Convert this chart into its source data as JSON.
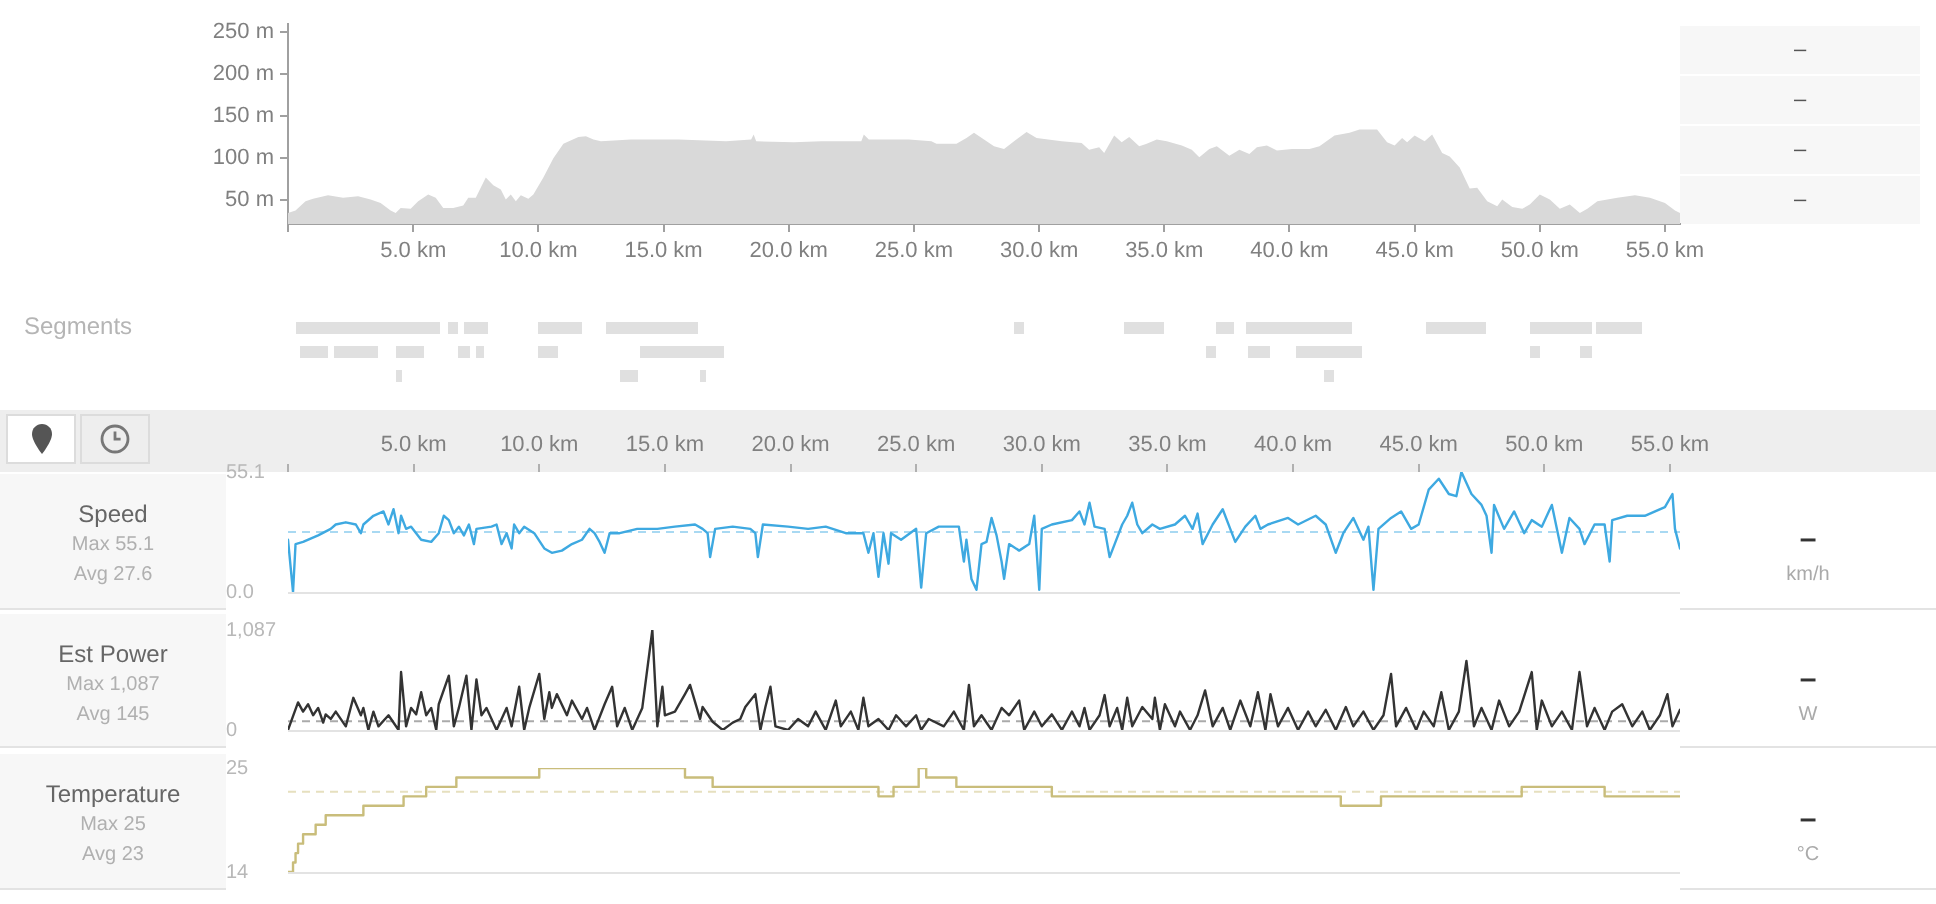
{
  "chart_data": [
    {
      "type": "area",
      "color": "#d9d9d9",
      "xlim": [
        0,
        55.6
      ],
      "ylim": [
        22,
        259
      ],
      "xticks": [
        {
          "value": 0,
          "label": null
        },
        {
          "value": 5,
          "label": "5.0 km"
        },
        {
          "value": 10,
          "label": "10.0 km"
        },
        {
          "value": 15,
          "label": "15.0 km"
        },
        {
          "value": 20,
          "label": "20.0 km"
        },
        {
          "value": 25,
          "label": "25.0 km"
        },
        {
          "value": 30,
          "label": "30.0 km"
        },
        {
          "value": 35,
          "label": "35.0 km"
        },
        {
          "value": 40,
          "label": "40.0 km"
        },
        {
          "value": 45,
          "label": "45.0 km"
        },
        {
          "value": 50,
          "label": "50.0 km"
        },
        {
          "value": 55,
          "label": "55.0 km"
        }
      ],
      "yticks": [
        {
          "value": 50,
          "label": "50 m"
        },
        {
          "value": 100,
          "label": "100 m"
        },
        {
          "value": 150,
          "label": "150 m"
        },
        {
          "value": 200,
          "label": "200 m"
        },
        {
          "value": 250,
          "label": "250 m"
        }
      ],
      "x": [
        0,
        0.3,
        0.7,
        1.0,
        1.6,
        2.2,
        2.8,
        3.3,
        3.7,
        4.1,
        4.3,
        4.5,
        4.9,
        5.2,
        5.6,
        5.9,
        6.2,
        6.6,
        7.0,
        7.2,
        7.5,
        7.9,
        8.2,
        8.5,
        8.7,
        8.9,
        9.1,
        9.3,
        9.6,
        9.8,
        10.2,
        10.6,
        11.0,
        11.6,
        11.9,
        12.2,
        12.5,
        13.7,
        15.6,
        17.5,
        18.5,
        18.6,
        18.7,
        20.2,
        21.3,
        22.9,
        23.0,
        23.2,
        24.8,
        25.7,
        25.9,
        26.7,
        27.1,
        27.4,
        27.8,
        28.2,
        28.6,
        29.0,
        29.5,
        29.9,
        30.9,
        31.7,
        32.0,
        32.4,
        32.6,
        33.0,
        33.3,
        33.6,
        34.0,
        34.3,
        34.7,
        35.1,
        35.7,
        36.1,
        36.4,
        36.8,
        37.1,
        37.6,
        38.0,
        38.4,
        38.7,
        39.1,
        39.5,
        40.1,
        40.8,
        41.2,
        41.8,
        42.4,
        42.8,
        43.5,
        43.9,
        44.2,
        44.5,
        44.7,
        45.0,
        45.4,
        45.7,
        46.1,
        46.4,
        46.8,
        47.2,
        47.5,
        47.9,
        48.3,
        48.5,
        48.9,
        49.3,
        49.6,
        50.0,
        50.4,
        50.8,
        51.2,
        51.6,
        51.9,
        52.3,
        53.1,
        53.8,
        54.4,
        55.0,
        55.4,
        55.6
      ],
      "values": [
        35,
        38,
        49,
        52,
        56,
        53,
        55,
        51,
        47,
        38,
        35,
        41,
        40,
        49,
        57,
        53,
        41,
        41,
        44,
        53,
        53,
        77,
        68,
        63,
        51,
        57,
        49,
        56,
        52,
        57,
        77,
        100,
        117,
        125,
        126,
        122,
        120,
        122,
        122,
        120,
        122,
        128,
        120,
        119,
        120,
        120,
        128,
        122,
        122,
        120,
        117,
        117,
        124,
        130,
        122,
        114,
        111,
        120,
        131,
        124,
        120,
        118,
        110,
        113,
        106,
        127,
        119,
        125,
        114,
        117,
        122,
        120,
        115,
        110,
        101,
        111,
        114,
        103,
        110,
        105,
        113,
        115,
        109,
        111,
        111,
        114,
        127,
        130,
        134,
        134,
        119,
        115,
        124,
        119,
        127,
        120,
        128,
        106,
        102,
        89,
        64,
        65,
        49,
        43,
        51,
        42,
        40,
        45,
        57,
        51,
        40,
        45,
        35,
        40,
        49,
        53,
        56,
        53,
        47,
        38,
        35
      ],
      "annotations": [
        "–",
        "–",
        "–",
        "–"
      ]
    },
    {
      "type": "other",
      "title": "Segments"
    },
    {
      "type": "line",
      "title": "Speed",
      "color": "#3ea9e1",
      "xlim": [
        0,
        55.4
      ],
      "ylim": [
        0,
        55.1
      ],
      "xticks": [
        {
          "value": 0,
          "label": null
        },
        {
          "value": 5,
          "label": "5.0 km"
        },
        {
          "value": 10,
          "label": "10.0 km"
        },
        {
          "value": 15,
          "label": "15.0 km"
        },
        {
          "value": 20,
          "label": "20.0 km"
        },
        {
          "value": 25,
          "label": "25.0 km"
        },
        {
          "value": 30,
          "label": "30.0 km"
        },
        {
          "value": 35,
          "label": "35.0 km"
        },
        {
          "value": 40,
          "label": "40.0 km"
        },
        {
          "value": 45,
          "label": "45.0 km"
        },
        {
          "value": 50,
          "label": "50.0 km"
        },
        {
          "value": 55,
          "label": "55.0 km"
        }
      ],
      "yticks": [
        {
          "value": 0,
          "label": "0.0"
        },
        55.1
      ],
      "ref_lines": [
        {
          "axis": "y",
          "value": 27.6,
          "color": "#a9d9f2",
          "line_style": "dashed"
        }
      ],
      "x": [
        0,
        0.2,
        0.3,
        0.6,
        1.2,
        1.7,
        1.9,
        2.3,
        2.7,
        2.9,
        3.0,
        3.4,
        3.8,
        4.0,
        4.2,
        4.4,
        4.5,
        4.7,
        4.9,
        5.3,
        5.7,
        6.0,
        6.2,
        6.4,
        6.6,
        6.8,
        7.0,
        7.2,
        7.4,
        7.5,
        8.1,
        8.3,
        8.5,
        8.7,
        8.9,
        9.0,
        9.2,
        9.4,
        9.8,
        10.2,
        10.5,
        10.9,
        11.3,
        11.7,
        12.0,
        12.2,
        12.4,
        12.6,
        12.8,
        13.2,
        13.9,
        14.7,
        15.4,
        16.2,
        16.5,
        16.7,
        16.8,
        17.0,
        17.7,
        18.4,
        18.6,
        18.7,
        18.9,
        19.9,
        20.7,
        21.4,
        22.2,
        22.9,
        23.1,
        23.3,
        23.5,
        23.7,
        23.9,
        24.0,
        24.4,
        25.0,
        25.2,
        25.4,
        25.9,
        26.7,
        26.9,
        27.0,
        27.2,
        27.4,
        27.6,
        27.8,
        28.0,
        28.2,
        28.4,
        28.5,
        28.7,
        29.1,
        29.5,
        29.7,
        29.9,
        30.0,
        30.4,
        31.2,
        31.5,
        31.7,
        31.9,
        32.1,
        32.5,
        32.7,
        32.9,
        33.2,
        33.4,
        33.6,
        33.8,
        34.0,
        34.4,
        34.7,
        35.3,
        35.7,
        36.0,
        36.2,
        36.4,
        36.8,
        37.2,
        37.5,
        37.7,
        38.1,
        38.5,
        38.7,
        39.0,
        39.8,
        40.2,
        40.9,
        41.3,
        41.7,
        42.0,
        42.4,
        42.8,
        43.0,
        43.2,
        43.4,
        43.9,
        44.3,
        44.7,
        45.0,
        45.4,
        45.8,
        46.2,
        46.5,
        46.7,
        47.1,
        47.5,
        47.7,
        47.9,
        48.0,
        48.4,
        48.8,
        49.2,
        49.5,
        49.9,
        50.3,
        50.7,
        51.0,
        51.4,
        51.6,
        52.0,
        52.4,
        52.6,
        52.7,
        53.3,
        54.0,
        54.8,
        55.1,
        55.2,
        55.4
      ],
      "values": [
        24,
        0,
        22,
        23,
        26,
        29,
        31,
        32,
        31,
        27,
        31,
        35,
        37,
        31,
        38,
        27,
        35,
        29,
        30,
        24,
        23,
        27,
        35,
        33,
        27,
        30,
        26,
        31,
        22,
        29,
        30,
        31,
        22,
        27,
        20,
        31,
        27,
        30,
        27,
        20,
        18,
        19,
        22,
        24,
        29,
        27,
        23,
        18,
        27,
        27,
        29,
        29,
        30,
        31,
        29,
        27,
        16,
        29,
        30,
        29,
        27,
        16,
        31,
        30,
        29,
        30,
        27,
        27,
        18,
        27,
        7,
        27,
        13,
        27,
        24,
        29,
        2,
        27,
        30,
        30,
        14,
        24,
        6,
        1,
        22,
        23,
        34,
        26,
        14,
        6,
        22,
        19,
        22,
        35,
        1,
        29,
        31,
        33,
        37,
        31,
        41,
        30,
        29,
        16,
        22,
        31,
        35,
        41,
        31,
        27,
        31,
        29,
        31,
        35,
        29,
        36,
        22,
        31,
        38,
        29,
        23,
        30,
        35,
        29,
        31,
        34,
        31,
        35,
        31,
        18,
        27,
        34,
        24,
        30,
        1,
        29,
        34,
        37,
        29,
        31,
        47,
        52,
        45,
        44,
        55.1,
        45,
        40,
        35,
        18,
        40,
        29,
        37,
        27,
        33,
        30,
        40,
        18,
        34,
        29,
        22,
        31,
        31,
        14,
        33,
        35,
        35,
        39,
        45,
        29,
        20
      ],
      "annotations": [
        "Max 55.1",
        "Avg 27.6",
        "–",
        "km/h"
      ]
    },
    {
      "type": "line",
      "title": "Est Power",
      "color": "#333333",
      "xlim": [
        0,
        55.4
      ],
      "ylim": [
        0,
        1087
      ],
      "tick_labels": "y",
      "yticks": [
        0,
        {
          "value": 1087,
          "label": "1,087"
        }
      ],
      "ref_lines": [
        {
          "axis": "y",
          "value": 95,
          "color": "#aaaaaa",
          "line_style": "dashed"
        }
      ],
      "x": [
        0,
        0.4,
        0.6,
        0.8,
        1.0,
        1.2,
        1.4,
        1.5,
        1.7,
        1.9,
        2.3,
        2.6,
        2.9,
        3.0,
        3.2,
        3.4,
        3.6,
        4.0,
        4.4,
        4.5,
        4.7,
        4.9,
        5.1,
        5.3,
        5.5,
        5.7,
        5.9,
        6.0,
        6.4,
        6.6,
        6.8,
        7.1,
        7.3,
        7.5,
        7.7,
        7.9,
        8.3,
        8.7,
        8.9,
        9.2,
        9.4,
        9.6,
        10.0,
        10.2,
        10.4,
        10.5,
        10.7,
        11.1,
        11.3,
        11.7,
        11.9,
        12.2,
        12.6,
        12.9,
        13.1,
        13.4,
        13.7,
        14.1,
        14.5,
        14.7,
        14.9,
        15.0,
        15.4,
        15.8,
        16.0,
        16.4,
        16.5,
        16.9,
        17.3,
        17.7,
        18.0,
        18.2,
        18.6,
        18.8,
        19.0,
        19.2,
        19.4,
        19.9,
        20.3,
        20.7,
        21.0,
        21.4,
        21.8,
        22.0,
        22.4,
        22.7,
        22.9,
        23.1,
        23.5,
        23.9,
        24.2,
        24.6,
        25.0,
        25.2,
        25.5,
        26.1,
        26.5,
        26.9,
        27.1,
        27.3,
        27.6,
        28.0,
        28.4,
        28.7,
        29.1,
        29.3,
        29.7,
        30.0,
        30.4,
        30.8,
        31.2,
        31.5,
        31.7,
        31.9,
        32.3,
        32.5,
        32.7,
        33.0,
        33.2,
        33.4,
        33.6,
        34.0,
        34.4,
        34.5,
        34.7,
        34.9,
        35.3,
        35.5,
        35.9,
        36.2,
        36.5,
        36.8,
        37.2,
        37.5,
        37.9,
        38.3,
        38.6,
        38.9,
        39.1,
        39.4,
        39.8,
        40.2,
        40.6,
        40.9,
        41.3,
        41.7,
        42.1,
        42.4,
        42.8,
        43.2,
        43.6,
        43.9,
        44.1,
        44.5,
        44.9,
        45.2,
        45.6,
        45.9,
        46.2,
        46.6,
        46.9,
        47.2,
        47.5,
        47.9,
        48.2,
        48.6,
        49.0,
        49.5,
        49.7,
        49.9,
        50.3,
        50.7,
        51.1,
        51.4,
        51.7,
        52.0,
        52.4,
        52.7,
        53.1,
        53.5,
        53.9,
        54.2,
        54.6,
        54.9,
        55.1,
        55.4
      ],
      "values": [
        0,
        300,
        200,
        280,
        160,
        240,
        80,
        170,
        120,
        200,
        40,
        350,
        160,
        240,
        0,
        200,
        40,
        160,
        0,
        630,
        40,
        240,
        170,
        410,
        160,
        240,
        0,
        280,
        590,
        40,
        240,
        590,
        0,
        550,
        160,
        240,
        0,
        240,
        40,
        470,
        0,
        240,
        610,
        120,
        410,
        240,
        390,
        160,
        320,
        120,
        240,
        0,
        280,
        470,
        40,
        240,
        0,
        240,
        1087,
        40,
        470,
        160,
        200,
        390,
        490,
        120,
        250,
        90,
        0,
        80,
        120,
        250,
        390,
        0,
        250,
        470,
        40,
        0,
        120,
        40,
        200,
        0,
        320,
        40,
        200,
        0,
        350,
        40,
        120,
        0,
        160,
        40,
        160,
        0,
        120,
        40,
        200,
        0,
        490,
        40,
        160,
        0,
        240,
        160,
        320,
        0,
        200,
        40,
        170,
        0,
        200,
        40,
        240,
        0,
        160,
        380,
        40,
        240,
        0,
        350,
        40,
        250,
        120,
        350,
        0,
        280,
        40,
        200,
        0,
        160,
        430,
        40,
        240,
        0,
        320,
        40,
        410,
        0,
        390,
        40,
        240,
        0,
        200,
        40,
        220,
        0,
        250,
        40,
        200,
        0,
        160,
        610,
        40,
        240,
        0,
        200,
        40,
        410,
        0,
        200,
        750,
        40,
        240,
        0,
        320,
        40,
        200,
        630,
        0,
        320,
        40,
        200,
        0,
        630,
        40,
        240,
        0,
        200,
        280,
        40,
        200,
        0,
        160,
        390,
        40,
        220
      ],
      "annotations": [
        "Max 1,087",
        "Avg 145",
        "–",
        "W"
      ]
    },
    {
      "type": "step",
      "title": "Temperature",
      "color": "#c9bd7b",
      "xlim": [
        0,
        55.4
      ],
      "ylim": [
        14,
        25
      ],
      "tick_labels": "y",
      "yticks": [
        14,
        25
      ],
      "ref_lines": [
        {
          "axis": "y",
          "value": 22.5,
          "color": "#e6e0bf",
          "line_style": "dashed"
        }
      ],
      "x": [
        0,
        0.2,
        0.3,
        0.4,
        0.6,
        1.1,
        1.5,
        3.0,
        4.6,
        5.5,
        6.7,
        10.0,
        15.8,
        16.9,
        23.5,
        24.1,
        25.1,
        25.4,
        26.6,
        30.4,
        41.9,
        43.5,
        49.1,
        52.4,
        55.4
      ],
      "values": [
        14,
        15,
        16,
        17,
        18,
        19,
        20,
        21,
        22,
        23,
        24,
        25,
        24,
        23,
        22,
        23,
        25,
        24,
        23,
        22,
        21,
        22,
        23,
        22,
        22
      ],
      "annotations": [
        "Max 25",
        "Avg 23",
        "–",
        "°C"
      ]
    }
  ]
}
